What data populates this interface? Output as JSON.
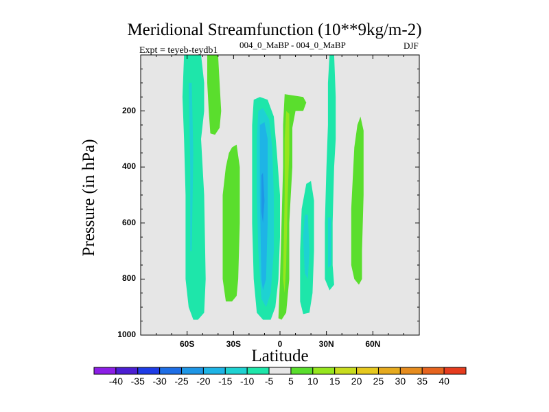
{
  "chart_data": {
    "type": "filled-contour",
    "title": "Meridional Streamfunction (10**9kg/m-2)",
    "experiment": "Expt = teyeb-teydb1",
    "comparison": "004_0_MaBP - 004_0_MaBP",
    "season": "DJF",
    "xlabel": "Latitude",
    "ylabel": "Pressure (in hPa)",
    "x_ticks": [
      "60S",
      "30S",
      "0",
      "30N",
      "60N"
    ],
    "x_tick_values": [
      -60,
      -30,
      0,
      30,
      60
    ],
    "y_ticks": [
      "200",
      "400",
      "600",
      "800",
      "1000"
    ],
    "y_tick_values": [
      200,
      400,
      600,
      800,
      1000
    ],
    "xlim": [
      -90,
      90
    ],
    "ylim": [
      1000,
      0
    ],
    "background_color": "#e6e6e6",
    "colorbar": {
      "levels": [
        "-40",
        "-35",
        "-30",
        "-25",
        "-20",
        "-15",
        "-10",
        "-5",
        "5",
        "10",
        "15",
        "20",
        "25",
        "30",
        "35",
        "40"
      ],
      "colors": [
        "#8c1ee6",
        "#4b1ed2",
        "#1e3ce6",
        "#1e6ee6",
        "#1e96e6",
        "#1eb4e6",
        "#1ed2d2",
        "#1ee6aa",
        "#e6e6e6",
        "#5ade2d",
        "#96e61e",
        "#c8dc1e",
        "#e6c81e",
        "#e6aa1e",
        "#e68c1e",
        "#e6641e",
        "#e63c1e"
      ]
    },
    "regions": [
      {
        "name": "sh-polar-cell",
        "color": "#1ee6aa",
        "points": [
          [
            -62,
            0
          ],
          [
            -51,
            0
          ],
          [
            -49,
            100
          ],
          [
            -49,
            200
          ],
          [
            -51,
            300
          ],
          [
            -49,
            500
          ],
          [
            -48,
            800
          ],
          [
            -49,
            920
          ],
          [
            -53,
            945
          ],
          [
            -56,
            945
          ],
          [
            -59,
            900
          ],
          [
            -61,
            800
          ],
          [
            -61,
            500
          ],
          [
            -62,
            300
          ],
          [
            -63,
            150
          ]
        ]
      },
      {
        "name": "sh-polar-core",
        "color": "#1ed2d2",
        "points": [
          [
            -59,
            100
          ],
          [
            -57,
            100
          ],
          [
            -56,
            350
          ],
          [
            -57,
            700
          ],
          [
            -58,
            700
          ],
          [
            -58,
            400
          ]
        ]
      },
      {
        "name": "sh-upper-positive",
        "color": "#5ade2d",
        "points": [
          [
            -47,
            0
          ],
          [
            -40,
            0
          ],
          [
            -39,
            100
          ],
          [
            -38,
            200
          ],
          [
            -39,
            260
          ],
          [
            -42,
            285
          ],
          [
            -45,
            280
          ],
          [
            -46,
            200
          ],
          [
            -47,
            100
          ]
        ]
      },
      {
        "name": "sh-ferrel-cell",
        "color": "#5ade2d",
        "points": [
          [
            -31,
            330
          ],
          [
            -28,
            320
          ],
          [
            -26,
            400
          ],
          [
            -26,
            600
          ],
          [
            -27,
            800
          ],
          [
            -28,
            860
          ],
          [
            -31,
            880
          ],
          [
            -35,
            880
          ],
          [
            -37,
            800
          ],
          [
            -37,
            500
          ],
          [
            -35,
            400
          ],
          [
            -33,
            350
          ]
        ]
      },
      {
        "name": "hadley-south-outer",
        "color": "#1ee6aa",
        "points": [
          [
            -17,
            160
          ],
          [
            -13,
            150
          ],
          [
            -8,
            160
          ],
          [
            -4,
            220
          ],
          [
            -2,
            350
          ],
          [
            0,
            500
          ],
          [
            0,
            650
          ],
          [
            -1,
            800
          ],
          [
            -3,
            900
          ],
          [
            -6,
            945
          ],
          [
            -11,
            945
          ],
          [
            -15,
            920
          ],
          [
            -17,
            800
          ],
          [
            -18,
            600
          ],
          [
            -18,
            400
          ],
          [
            -18,
            250
          ]
        ]
      },
      {
        "name": "hadley-south-mid",
        "color": "#1ed2d2",
        "points": [
          [
            -14,
            200
          ],
          [
            -11,
            190
          ],
          [
            -7,
            230
          ],
          [
            -5,
            330
          ],
          [
            -4,
            500
          ],
          [
            -4,
            700
          ],
          [
            -6,
            850
          ],
          [
            -9,
            900
          ],
          [
            -12,
            870
          ],
          [
            -14,
            700
          ],
          [
            -15,
            500
          ],
          [
            -15,
            300
          ]
        ]
      },
      {
        "name": "hadley-south-core",
        "color": "#1eb4e6",
        "points": [
          [
            -13,
            250
          ],
          [
            -10,
            240
          ],
          [
            -8,
            300
          ],
          [
            -8,
            600
          ],
          [
            -9,
            800
          ],
          [
            -11,
            840
          ],
          [
            -12,
            800
          ],
          [
            -13,
            500
          ]
        ]
      },
      {
        "name": "hadley-south-peak",
        "color": "#1e96e6",
        "points": [
          [
            -12,
            430
          ],
          [
            -11,
            420
          ],
          [
            -10,
            520
          ],
          [
            -11,
            600
          ],
          [
            -12,
            560
          ]
        ]
      },
      {
        "name": "hadley-north-outer",
        "color": "#5ade2d",
        "points": [
          [
            3,
            140
          ],
          [
            15,
            150
          ],
          [
            17,
            170
          ],
          [
            15,
            200
          ],
          [
            10,
            200
          ],
          [
            8,
            260
          ],
          [
            8,
            400
          ],
          [
            6,
            600
          ],
          [
            6,
            800
          ],
          [
            4,
            920
          ],
          [
            1,
            945
          ],
          [
            -1,
            940
          ],
          [
            0,
            800
          ],
          [
            1,
            600
          ],
          [
            2,
            400
          ],
          [
            2,
            250
          ]
        ]
      },
      {
        "name": "hadley-north-core",
        "color": "#96e61e",
        "points": [
          [
            4,
            200
          ],
          [
            6,
            210
          ],
          [
            6,
            350
          ],
          [
            5,
            500
          ],
          [
            4,
            750
          ],
          [
            3,
            850
          ],
          [
            2,
            800
          ],
          [
            3,
            500
          ],
          [
            3,
            300
          ]
        ]
      },
      {
        "name": "nh-cell-a",
        "color": "#1ee6aa",
        "points": [
          [
            17,
            460
          ],
          [
            20,
            450
          ],
          [
            22,
            520
          ],
          [
            22,
            700
          ],
          [
            21,
            850
          ],
          [
            19,
            920
          ],
          [
            15,
            925
          ],
          [
            13,
            880
          ],
          [
            13,
            700
          ],
          [
            14,
            550
          ]
        ]
      },
      {
        "name": "nh-cell-a-core",
        "color": "#1ed2d2",
        "points": [
          [
            16,
            570
          ],
          [
            18,
            570
          ],
          [
            19,
            700
          ],
          [
            18,
            800
          ],
          [
            16,
            780
          ],
          [
            15,
            650
          ]
        ]
      },
      {
        "name": "nh-cell-b",
        "color": "#1ee6aa",
        "points": [
          [
            32,
            0
          ],
          [
            35,
            0
          ],
          [
            36,
            150
          ],
          [
            36,
            300
          ],
          [
            35,
            400
          ],
          [
            34,
            600
          ],
          [
            34,
            750
          ],
          [
            35,
            820
          ],
          [
            32,
            840
          ],
          [
            29,
            800
          ],
          [
            29,
            600
          ],
          [
            30,
            400
          ],
          [
            31,
            250
          ],
          [
            31,
            100
          ]
        ]
      },
      {
        "name": "nh-cell-b-core",
        "color": "#1ed2d2",
        "points": [
          [
            31,
            580
          ],
          [
            33,
            580
          ],
          [
            33,
            750
          ],
          [
            31,
            760
          ]
        ]
      },
      {
        "name": "nh-midlatitude-positive",
        "color": "#5ade2d",
        "points": [
          [
            52,
            220
          ],
          [
            54,
            270
          ],
          [
            54,
            500
          ],
          [
            53,
            700
          ],
          [
            53,
            800
          ],
          [
            51,
            820
          ],
          [
            48,
            800
          ],
          [
            46,
            750
          ],
          [
            46,
            550
          ],
          [
            48,
            330
          ],
          [
            50,
            250
          ]
        ]
      }
    ]
  }
}
